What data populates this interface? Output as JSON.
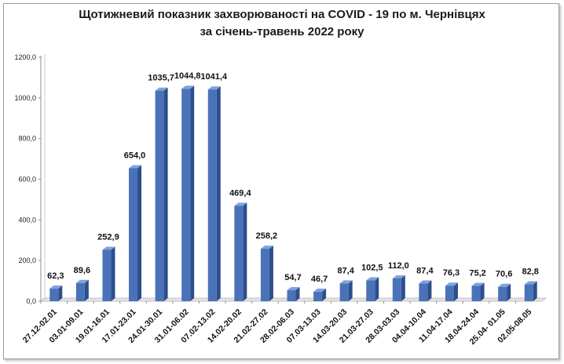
{
  "chart_data": {
    "type": "bar",
    "title": "Щотижневий показник захворюваності на COVID - 19 по м. Чернівцях",
    "subtitle": "за січень-травень 2022 року",
    "xlabel": "",
    "ylabel": "",
    "ylim": [
      0,
      1200
    ],
    "yticks": [
      "0,0",
      "200,0",
      "400,0",
      "600,0",
      "800,0",
      "1000,0",
      "1200,0"
    ],
    "grid": false,
    "legend": "none",
    "bar_color": "#4a72b8",
    "categories": [
      "27.12-02.01",
      "03.01-09.01",
      "19.01-16.01",
      "17.01-23.01",
      "24.01-30.01",
      "31.01-06.02",
      "07.02-13.02",
      "14.02-20.02",
      "21.02-27.02",
      "28.02-06.03",
      "07.03-13.03",
      "14.03-20.03",
      "21.03-27.03",
      "28.03-03.03",
      "04.04-10.04",
      "11.04-17.04",
      "18.04-24.04",
      "25.04- 01.05",
      "02.05-08.05"
    ],
    "values": [
      62.3,
      89.6,
      252.9,
      654.0,
      1035.7,
      1044.8,
      1041.4,
      469.4,
      258.2,
      54.7,
      46.7,
      87.4,
      102.5,
      112.0,
      87.4,
      76.3,
      75.2,
      70.6,
      82.8
    ],
    "labels": [
      "62,3",
      "89,6",
      "252,9",
      "654,0",
      "1035,7",
      "1044,8",
      "1041,4",
      "469,4",
      "258,2",
      "54,7",
      "46,7",
      "87,4",
      "102,5",
      "112,0",
      "87,4",
      "76,3",
      "75,2",
      "70,6",
      "82,8"
    ]
  }
}
